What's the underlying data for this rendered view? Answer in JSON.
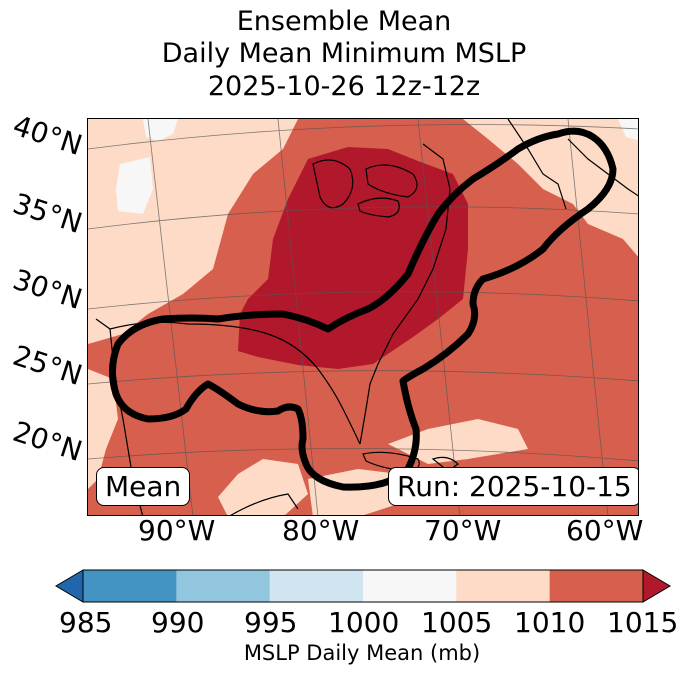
{
  "title": {
    "line1": "Ensemble Mean",
    "line2": "Daily Mean Minimum MSLP",
    "line3": "2025-10-26 12z-12z"
  },
  "map": {
    "lat_labels": [
      "40°N",
      "35°N",
      "30°N",
      "25°N",
      "20°N"
    ],
    "lon_labels": [
      "90°W",
      "80°W",
      "70°W",
      "60°W"
    ],
    "mean_label": "Mean",
    "run_label": "Run: 2025-10-15"
  },
  "colorbar": {
    "ticks": [
      "985",
      "990",
      "995",
      "1000",
      "1005",
      "1010",
      "1015"
    ],
    "colors": [
      "#2166ac",
      "#4393c3",
      "#92c5de",
      "#d1e5f0",
      "#f7f7f7",
      "#fddbc7",
      "#d6604d",
      "#b2182b"
    ],
    "label": "MSLP Daily Mean (mb)"
  },
  "fill_colors": {
    "lightest": "#f7f7f7",
    "light": "#fddbc7",
    "medium": "#d6604d",
    "dark": "#b2182b",
    "contour": "#000000"
  }
}
